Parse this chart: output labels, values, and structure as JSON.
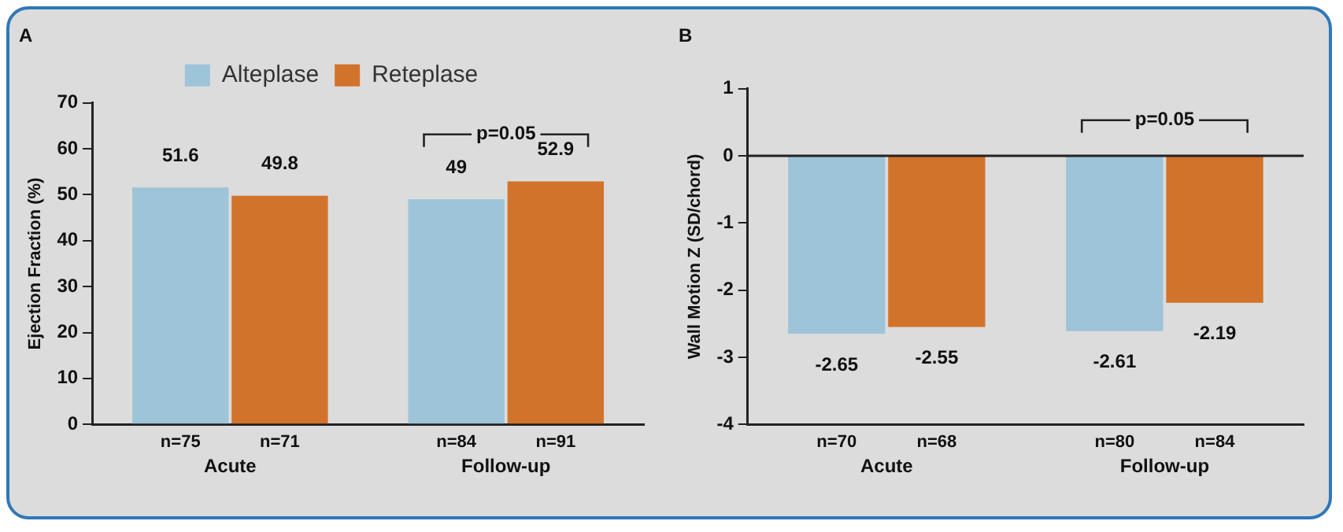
{
  "chart_data": [
    {
      "type": "bar",
      "title": "A",
      "ylabel": "Ejection Fraction (%)",
      "categories": [
        "Acute",
        "Follow-up"
      ],
      "series": [
        {
          "name": "Alteplase",
          "color": "#9dc4d9",
          "values": [
            51.6,
            49
          ]
        },
        {
          "name": "Reteplase",
          "color": "#d2732b",
          "values": [
            49.8,
            52.9
          ]
        }
      ],
      "ylim": [
        0,
        70
      ],
      "yticks": [
        0,
        10,
        20,
        30,
        40,
        50,
        60,
        70
      ],
      "grid": false,
      "legend": "top",
      "data_labels": true,
      "annotations": [
        "n=75",
        "n=71",
        "n=84",
        "n=91",
        "p=0.05"
      ]
    },
    {
      "type": "bar",
      "title": "B",
      "ylabel": "Wall Motion Z (SD/chord)",
      "categories": [
        "Acute",
        "Follow-up"
      ],
      "series": [
        {
          "color": "#9dc4d9",
          "values": [
            -2.65,
            -2.61
          ]
        },
        {
          "color": "#d2732b",
          "values": [
            -2.55,
            -2.19
          ]
        }
      ],
      "ylim": [
        -4,
        1
      ],
      "yticks": [
        -4,
        -3,
        -2,
        -1,
        0,
        1
      ],
      "grid": false,
      "legend": false,
      "data_labels": true,
      "ref_lines": [
        {
          "axis": "y",
          "value": 0,
          "color": "#222222"
        }
      ],
      "annotations": [
        "n=70",
        "n=68",
        "n=80",
        "n=84",
        "p=0.05"
      ]
    }
  ]
}
